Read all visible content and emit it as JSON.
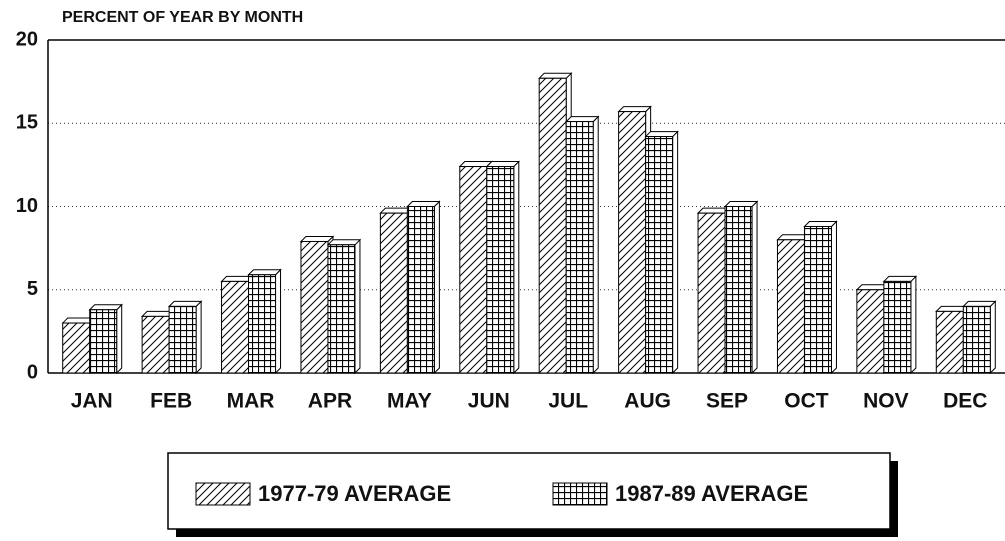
{
  "chart_data": {
    "type": "bar",
    "title": "PERCENT OF YEAR BY MONTH",
    "categories": [
      "JAN",
      "FEB",
      "MAR",
      "APR",
      "MAY",
      "JUN",
      "JUL",
      "AUG",
      "SEP",
      "OCT",
      "NOV",
      "DEC"
    ],
    "series": [
      {
        "name": "1977-79 AVERAGE",
        "color": "#000000",
        "pattern": "diagonal",
        "values": [
          3.0,
          3.4,
          5.5,
          7.9,
          9.6,
          12.4,
          17.7,
          15.7,
          9.6,
          8.0,
          5.0,
          3.7
        ]
      },
      {
        "name": "1987-89 AVERAGE",
        "color": "#000000",
        "pattern": "grid",
        "values": [
          3.8,
          4.0,
          5.9,
          7.7,
          10.0,
          12.4,
          15.1,
          14.2,
          10.0,
          8.8,
          5.5,
          4.0
        ]
      }
    ],
    "ylim": [
      0,
      20
    ],
    "yticks": [
      0,
      5,
      10,
      15,
      20
    ],
    "grid": true,
    "legend": "bottom"
  }
}
